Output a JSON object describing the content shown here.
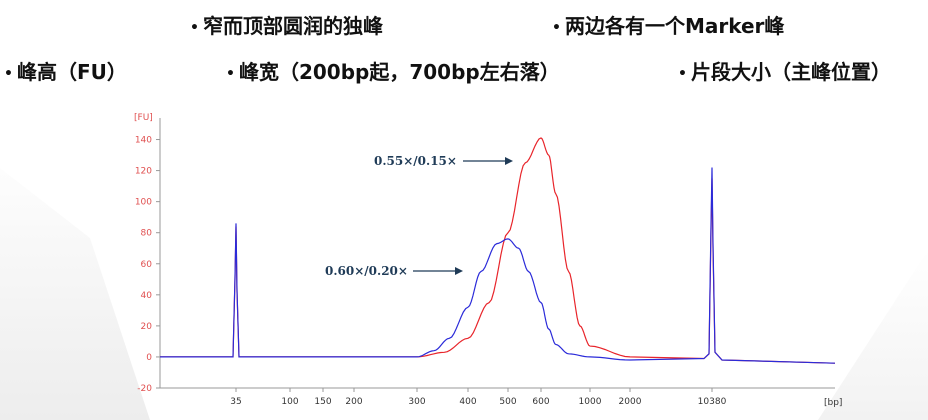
{
  "bullets": [
    {
      "text": "窄而顶部圆润的独峰"
    },
    {
      "text": "两边各有一个Marker峰"
    },
    {
      "text": "峰高（FU）"
    },
    {
      "text": "峰宽（200bp起，700bp左右落）"
    },
    {
      "text": "片段大小（主峰位置）"
    }
  ],
  "colors": {
    "red": "#e8252b",
    "blue": "#2b2bd9",
    "axis": "#e05050",
    "text": "#111111"
  },
  "chart_data": {
    "type": "line",
    "y_unit_label": "[FU]",
    "x_unit_label": "[bp]",
    "ylim": [
      -20,
      150
    ],
    "y_ticks": [
      -20,
      0,
      20,
      40,
      60,
      80,
      100,
      120,
      140
    ],
    "x_ticks": [
      "35",
      "100",
      "150",
      "200",
      "300",
      "400",
      "500",
      "600",
      "1000",
      "2000",
      "10380"
    ],
    "x_scale": "log",
    "grid": false,
    "annotations": [
      {
        "text": "0.55×/0.15×",
        "series": "red"
      },
      {
        "text": "0.60×/0.20×",
        "series": "blue"
      }
    ],
    "series": [
      {
        "color": "red",
        "x": [
          35,
          300,
          350,
          400,
          450,
          500,
          550,
          600,
          650,
          700,
          800,
          900,
          1000,
          2000,
          10380
        ],
        "y": [
          0,
          0,
          3,
          12,
          35,
          80,
          125,
          141,
          130,
          105,
          55,
          20,
          7,
          0,
          -4
        ],
        "marker_peaks": [
          {
            "x": 35,
            "y": 84
          },
          {
            "x": 10380,
            "y": 115
          }
        ]
      },
      {
        "color": "blue",
        "x": [
          35,
          300,
          330,
          360,
          400,
          430,
          470,
          500,
          530,
          560,
          600,
          650,
          700,
          800,
          1000,
          2000,
          10380
        ],
        "y": [
          0,
          0,
          4,
          12,
          32,
          55,
          73,
          76,
          70,
          55,
          35,
          18,
          8,
          2,
          0,
          -2,
          -4
        ],
        "marker_peaks": [
          {
            "x": 35,
            "y": 86
          },
          {
            "x": 10380,
            "y": 122
          }
        ]
      }
    ]
  }
}
